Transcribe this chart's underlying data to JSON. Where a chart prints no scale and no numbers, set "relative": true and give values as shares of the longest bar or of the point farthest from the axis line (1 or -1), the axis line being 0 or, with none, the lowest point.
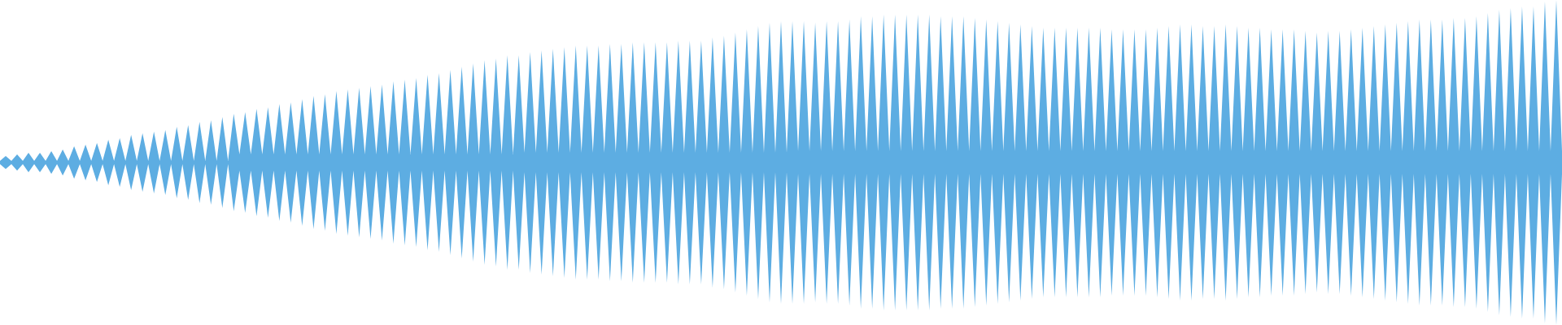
{
  "chart_data": {
    "type": "area",
    "relative": true,
    "categories": [
      null,
      null,
      null,
      null,
      null,
      null,
      null,
      null,
      null,
      null,
      null,
      null,
      null,
      null,
      null,
      null,
      null,
      null,
      null,
      null,
      null,
      null,
      null,
      null,
      null,
      null,
      null,
      null,
      null,
      null,
      null,
      null,
      null,
      null,
      null,
      null,
      null,
      null,
      null,
      null,
      null,
      null,
      null,
      null,
      null,
      null,
      null,
      null,
      null,
      null,
      null,
      null,
      null,
      null,
      null,
      null,
      null,
      null,
      null,
      null,
      null,
      null,
      null,
      null,
      null,
      null,
      null,
      null,
      null,
      null,
      null,
      null,
      null,
      null,
      null,
      null,
      null,
      null,
      null,
      null,
      null,
      null,
      null,
      null,
      null,
      null,
      null,
      null,
      null,
      null,
      null,
      null,
      null,
      null,
      null,
      null,
      null,
      null,
      null,
      null,
      null,
      null,
      null,
      null,
      null,
      null,
      null,
      null,
      null,
      null,
      null,
      null,
      null,
      null,
      null,
      null,
      null,
      null,
      null,
      null,
      null,
      null,
      null,
      null,
      null,
      null,
      null,
      null,
      null,
      null,
      null,
      null,
      null,
      null,
      null,
      null,
      null,
      null,
      null,
      null,
      null,
      null,
      null,
      null,
      null,
      null,
      null,
      null,
      null,
      null,
      null,
      null,
      null,
      null,
      null,
      null,
      null,
      null,
      null,
      null,
      null,
      null,
      null,
      null,
      null,
      null,
      null,
      null,
      null,
      null,
      null,
      null,
      null,
      null,
      null,
      null,
      null,
      null,
      null,
      null,
      null,
      null,
      null,
      null,
      null,
      null,
      null,
      null,
      null,
      null,
      null,
      null,
      null,
      null,
      null,
      null,
      null,
      null,
      null,
      null,
      null,
      null,
      null,
      null,
      null,
      null,
      null,
      null,
      null,
      null,
      null,
      null,
      null,
      null,
      null,
      null,
      null,
      null,
      null,
      null,
      null,
      null,
      null,
      null,
      null,
      null,
      null,
      null,
      null,
      null,
      null,
      null,
      null,
      null,
      null,
      null,
      null,
      null,
      null,
      null,
      null,
      null,
      null,
      null,
      null,
      null,
      null,
      null,
      null,
      null,
      null,
      null,
      null,
      null,
      null,
      null,
      null,
      null,
      null,
      null,
      null,
      null,
      null,
      null,
      null,
      null,
      null,
      null,
      null,
      null,
      null,
      null,
      null,
      null,
      null
    ],
    "series": [
      {
        "color": "#5dade2",
        "values": [
          0.01,
          0.04,
          0.01,
          0.05,
          0.01,
          0.06,
          0.01,
          0.06,
          0.01,
          0.07,
          0.01,
          0.08,
          0.01,
          0.1,
          0.01,
          0.11,
          0.01,
          0.12,
          0.01,
          0.14,
          0.01,
          0.15,
          0.01,
          0.17,
          0.01,
          0.18,
          0.01,
          0.19,
          0.01,
          0.2,
          0.01,
          0.22,
          0.01,
          0.23,
          0.01,
          0.25,
          0.01,
          0.26,
          0.01,
          0.28,
          0.01,
          0.3,
          0.05,
          0.31,
          0.05,
          0.33,
          0.05,
          0.34,
          0.05,
          0.36,
          0.05,
          0.37,
          0.05,
          0.39,
          0.05,
          0.41,
          0.05,
          0.42,
          0.05,
          0.44,
          0.05,
          0.45,
          0.05,
          0.46,
          0.05,
          0.47,
          0.05,
          0.48,
          0.05,
          0.5,
          0.05,
          0.51,
          0.05,
          0.52,
          0.05,
          0.54,
          0.05,
          0.55,
          0.05,
          0.57,
          0.05,
          0.59,
          0.05,
          0.61,
          0.05,
          0.63,
          0.05,
          0.64,
          0.05,
          0.66,
          0.05,
          0.66,
          0.06,
          0.68,
          0.06,
          0.69,
          0.06,
          0.7,
          0.06,
          0.71,
          0.06,
          0.72,
          0.06,
          0.72,
          0.06,
          0.72,
          0.06,
          0.73,
          0.06,
          0.73,
          0.06,
          0.74,
          0.06,
          0.74,
          0.06,
          0.74,
          0.06,
          0.74,
          0.06,
          0.75,
          0.06,
          0.75,
          0.06,
          0.75,
          0.06,
          0.77,
          0.06,
          0.78,
          0.06,
          0.8,
          0.06,
          0.82,
          0.06,
          0.84,
          0.06,
          0.86,
          0.06,
          0.87,
          0.06,
          0.87,
          0.07,
          0.87,
          0.07,
          0.86,
          0.07,
          0.87,
          0.07,
          0.87,
          0.07,
          0.88,
          0.07,
          0.9,
          0.07,
          0.9,
          0.07,
          0.91,
          0.07,
          0.91,
          0.07,
          0.91,
          0.07,
          0.91,
          0.07,
          0.91,
          0.07,
          0.9,
          0.07,
          0.9,
          0.07,
          0.9,
          0.07,
          0.89,
          0.07,
          0.88,
          0.07,
          0.87,
          0.07,
          0.86,
          0.07,
          0.85,
          0.07,
          0.84,
          0.07,
          0.83,
          0.07,
          0.83,
          0.07,
          0.83,
          0.07,
          0.83,
          0.07,
          0.83,
          0.07,
          0.83,
          0.07,
          0.82,
          0.07,
          0.82,
          0.07,
          0.82,
          0.07,
          0.82,
          0.07,
          0.83,
          0.07,
          0.84,
          0.07,
          0.85,
          0.07,
          0.85,
          0.07,
          0.84,
          0.07,
          0.84,
          0.07,
          0.85,
          0.07,
          0.84,
          0.07,
          0.83,
          0.07,
          0.83,
          0.07,
          0.82,
          0.07,
          0.82,
          0.07,
          0.82,
          0.07,
          0.81,
          0.07,
          0.8,
          0.07,
          0.81,
          0.07,
          0.81,
          0.07,
          0.82,
          0.07,
          0.83,
          0.07,
          0.84,
          0.07,
          0.85,
          0.07,
          0.86,
          0.07,
          0.87,
          0.07,
          0.88,
          0.07,
          0.88,
          0.07,
          0.88,
          0.07,
          0.89,
          0.07,
          0.89,
          0.07,
          0.9,
          0.07,
          0.92,
          0.07,
          0.94,
          0.07,
          0.95,
          0.07,
          0.96,
          0.07,
          0.96,
          0.07,
          0.99,
          0.07,
          1.0,
          0.07
        ]
      }
    ]
  }
}
